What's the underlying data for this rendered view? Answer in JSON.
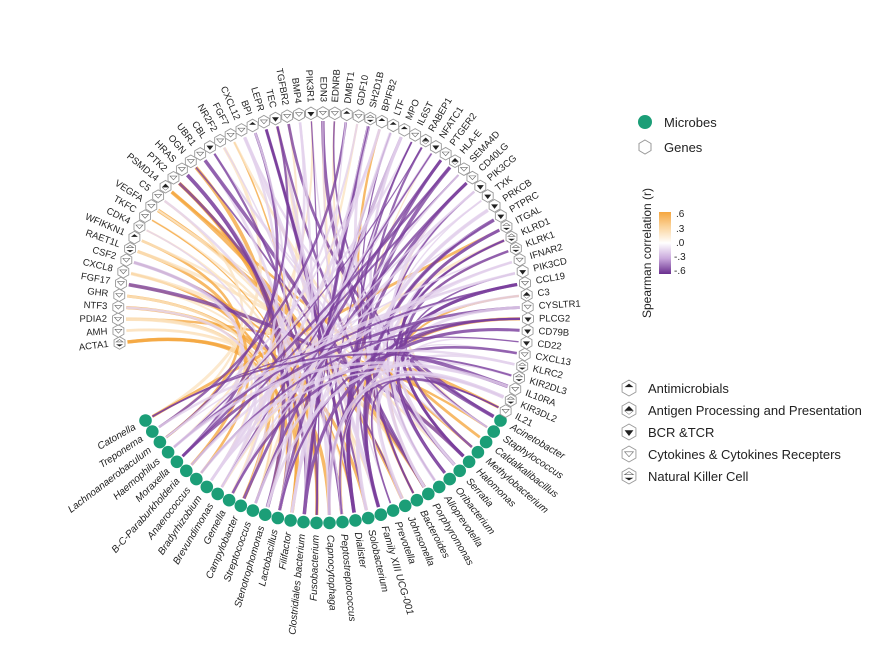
{
  "colors": {
    "microbe": "#1b9e77",
    "pos_light": "#fbe3c0",
    "pos_dark": "#f5a63f",
    "neg_light": "#e3d1ec",
    "neg_dark": "#7a3f9c",
    "hex_stroke": "#999999"
  },
  "microbes": [
    "Catonella",
    "Treponema",
    "Lachnoanaerobaculum",
    "Haemophilus",
    "Moraxella",
    "B-C-Paraburkholderia",
    "Anaerococcus",
    "Bradyrhizobium",
    "Brevundimonas",
    "Gemella",
    "Campylobacter",
    "Streptococcus",
    "Stenotrophomonas",
    "Lactobacillus",
    "Filifactor",
    "Clostridiales bacterium",
    "Fusobacterium",
    "Capnocytophaga",
    "Peptostreptococcus",
    "Dialister",
    "Solobacterium",
    "Family XIII UCG-001",
    "Prevotella",
    "Johnsonella",
    "Bacteroides",
    "Porphyromonas",
    "Alloprevotella",
    "Oribacterium",
    "Serratia",
    "Halomonas",
    "Methylobacterium",
    "Caldalkalibacillus",
    "Staphylococcus",
    "Acinetobacter"
  ],
  "genes": [
    {
      "name": "ACTA1",
      "cat": "nk"
    },
    {
      "name": "AMH",
      "cat": "cyto"
    },
    {
      "name": "PDIA2",
      "cat": "cyto"
    },
    {
      "name": "NTF3",
      "cat": "cyto"
    },
    {
      "name": "GHR",
      "cat": "cyto"
    },
    {
      "name": "FGF17",
      "cat": "cyto"
    },
    {
      "name": "CXCL8",
      "cat": "cyto"
    },
    {
      "name": "CSF2",
      "cat": "cyto"
    },
    {
      "name": "RAET1L",
      "cat": "nk"
    },
    {
      "name": "WFIKKN1",
      "cat": "amp"
    },
    {
      "name": "CDK4",
      "cat": "cyto"
    },
    {
      "name": "TKFC",
      "cat": "cyto"
    },
    {
      "name": "VEGFA",
      "cat": "cyto"
    },
    {
      "name": "C5",
      "cat": "cyto"
    },
    {
      "name": "PSMD14",
      "cat": "app"
    },
    {
      "name": "PTK2",
      "cat": "cyto"
    },
    {
      "name": "HRAS",
      "cat": "cyto"
    },
    {
      "name": "OGN",
      "cat": "cyto"
    },
    {
      "name": "UBR1",
      "cat": "cyto"
    },
    {
      "name": "CBL",
      "cat": "bcr"
    },
    {
      "name": "NR2F2",
      "cat": "cyto"
    },
    {
      "name": "FGF7",
      "cat": "cyto"
    },
    {
      "name": "CXCL12",
      "cat": "cyto"
    },
    {
      "name": "BPI",
      "cat": "amp"
    },
    {
      "name": "LEPR",
      "cat": "cyto"
    },
    {
      "name": "TEC",
      "cat": "bcr"
    },
    {
      "name": "TGFBR2",
      "cat": "cyto"
    },
    {
      "name": "BMP4",
      "cat": "cyto"
    },
    {
      "name": "PIK3R1",
      "cat": "bcr"
    },
    {
      "name": "EDN3",
      "cat": "cyto"
    },
    {
      "name": "EDNRB",
      "cat": "cyto"
    },
    {
      "name": "DMBT1",
      "cat": "amp"
    },
    {
      "name": "GDF10",
      "cat": "cyto"
    },
    {
      "name": "SH2D1B",
      "cat": "nk"
    },
    {
      "name": "BPIFB2",
      "cat": "amp"
    },
    {
      "name": "LTF",
      "cat": "amp"
    },
    {
      "name": "MPO",
      "cat": "amp"
    },
    {
      "name": "IL6ST",
      "cat": "cyto"
    },
    {
      "name": "RABEP1",
      "cat": "app"
    },
    {
      "name": "NFATC1",
      "cat": "bcr"
    },
    {
      "name": "PTGER2",
      "cat": "cyto"
    },
    {
      "name": "HLA-E",
      "cat": "app"
    },
    {
      "name": "SEMA4D",
      "cat": "cyto"
    },
    {
      "name": "CD40LG",
      "cat": "cyto"
    },
    {
      "name": "PIK3CG",
      "cat": "bcr"
    },
    {
      "name": "TXK",
      "cat": "bcr"
    },
    {
      "name": "PRKCB",
      "cat": "bcr"
    },
    {
      "name": "PTPRC",
      "cat": "bcr"
    },
    {
      "name": "ITGAL",
      "cat": "nk"
    },
    {
      "name": "KLRD1",
      "cat": "nk"
    },
    {
      "name": "KLRK1",
      "cat": "nk"
    },
    {
      "name": "IFNAR2",
      "cat": "cyto"
    },
    {
      "name": "PIK3CD",
      "cat": "bcr"
    },
    {
      "name": "CCL19",
      "cat": "cyto"
    },
    {
      "name": "C3",
      "cat": "app"
    },
    {
      "name": "CYSLTR1",
      "cat": "cyto"
    },
    {
      "name": "PLCG2",
      "cat": "bcr"
    },
    {
      "name": "CD79B",
      "cat": "bcr"
    },
    {
      "name": "CD22",
      "cat": "bcr"
    },
    {
      "name": "CXCL13",
      "cat": "cyto"
    },
    {
      "name": "KLRC2",
      "cat": "nk"
    },
    {
      "name": "KIR2DL3",
      "cat": "nk"
    },
    {
      "name": "IL10RA",
      "cat": "cyto"
    },
    {
      "name": "KIR3DL2",
      "cat": "nk"
    },
    {
      "name": "IL21",
      "cat": "cyto"
    }
  ],
  "legend": {
    "types": [
      {
        "label": "Microbes",
        "icon": "filled-circle"
      },
      {
        "label": "Genes",
        "icon": "hexagon"
      }
    ],
    "colorbar": {
      "title": "Spearman correlation (r)",
      "ticks": [
        ".6",
        ".3",
        ".0",
        "-.3",
        "-.6"
      ],
      "range": [
        -0.6,
        0.6
      ]
    },
    "categories": [
      {
        "key": "amp",
        "label": "Antimicrobials"
      },
      {
        "key": "app",
        "label": "Antigen Processing and Presentation"
      },
      {
        "key": "bcr",
        "label": "BCR &TCR"
      },
      {
        "key": "cyto",
        "label": "Cytokines & Cytokines Recepters"
      },
      {
        "key": "nk",
        "label": "Natural Killer Cell"
      }
    ]
  }
}
